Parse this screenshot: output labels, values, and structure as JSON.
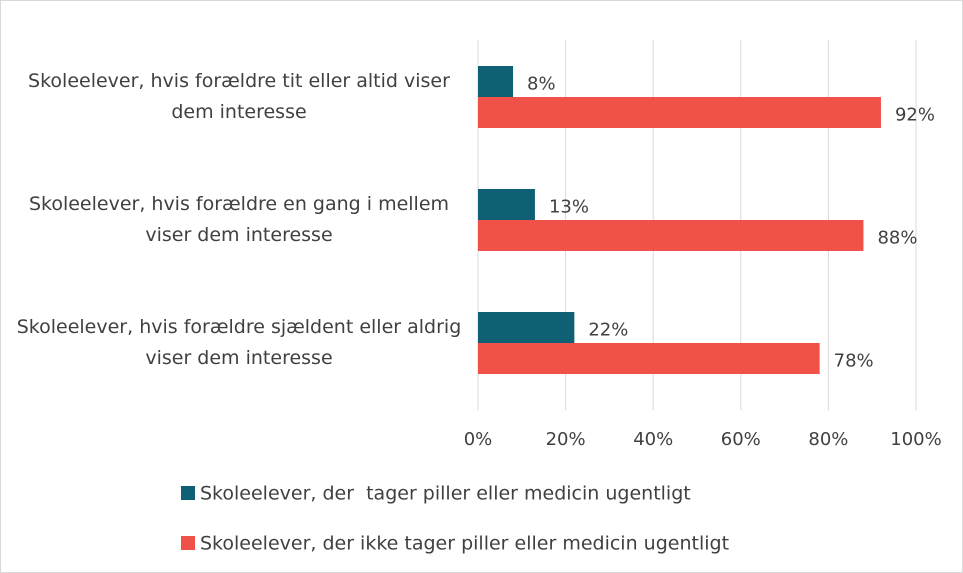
{
  "chart_data": {
    "type": "bar",
    "orientation": "horizontal",
    "categories": [
      "Skoleelever, hvis forældre tit eller altid viser dem interesse",
      "Skoleelever, hvis forældre en gang i mellem viser dem interesse",
      "Skoleelever, hvis forældre sjældent eller aldrig viser dem interesse"
    ],
    "series": [
      {
        "name": "Skoleelever, der  tager piller eller medicin ugentligt",
        "color": "#0f5f75",
        "values": [
          8,
          13,
          22
        ],
        "value_labels": [
          "8%",
          "13%",
          "22%"
        ]
      },
      {
        "name": "Skoleelever, der ikke tager piller eller medicin ugentligt",
        "color": "#f0524a",
        "values": [
          92,
          88,
          78
        ],
        "value_labels": [
          "92%",
          "88%",
          "78%"
        ]
      }
    ],
    "xlim": [
      0,
      100
    ],
    "xticks": [
      {
        "value": 0,
        "label": "0%"
      },
      {
        "value": 20,
        "label": "20%"
      },
      {
        "value": 40,
        "label": "40%"
      },
      {
        "value": 60,
        "label": "60%"
      },
      {
        "value": 80,
        "label": "80%"
      },
      {
        "value": 100,
        "label": "100%"
      }
    ],
    "grid": true,
    "legend": "bottom"
  }
}
